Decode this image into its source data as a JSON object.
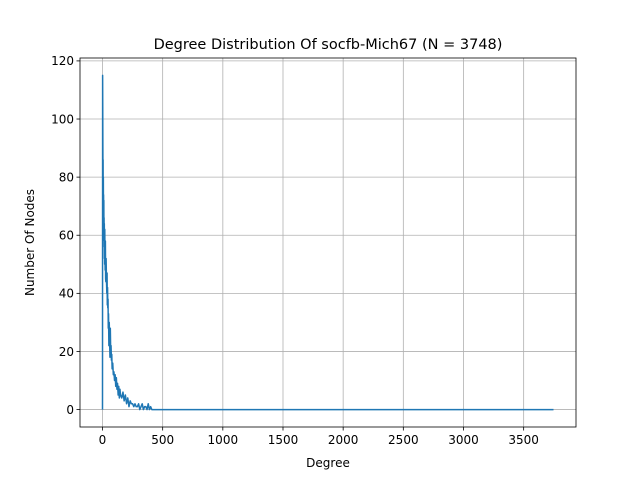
{
  "chart_data": {
    "type": "line",
    "title": "Degree Distribution Of socfb-Mich67 (N = 3748)",
    "xlabel": "Degree",
    "ylabel": "Number Of Nodes",
    "xlim": [
      -187,
      3935
    ],
    "ylim": [
      -6,
      121
    ],
    "xticks": [
      0,
      500,
      1000,
      1500,
      2000,
      2500,
      3000,
      3500
    ],
    "yticks": [
      0,
      20,
      40,
      60,
      80,
      100,
      120
    ],
    "grid": true,
    "legend": "none",
    "series": [
      {
        "color": "#1f77b4",
        "x": [
          0,
          1,
          2,
          3,
          4,
          5,
          6,
          7,
          8,
          9,
          10,
          11,
          12,
          13,
          14,
          15,
          16,
          17,
          18,
          19,
          20,
          22,
          24,
          26,
          28,
          30,
          32,
          34,
          36,
          38,
          40,
          42,
          44,
          46,
          48,
          50,
          53,
          56,
          59,
          62,
          65,
          68,
          71,
          74,
          77,
          80,
          85,
          90,
          95,
          100,
          105,
          110,
          115,
          120,
          125,
          130,
          135,
          140,
          145,
          150,
          160,
          170,
          180,
          190,
          200,
          210,
          220,
          230,
          240,
          250,
          260,
          270,
          280,
          290,
          300,
          310,
          320,
          330,
          340,
          350,
          360,
          370,
          380,
          390,
          400,
          410,
          420,
          500,
          1000,
          1500,
          2000,
          2500,
          3000,
          3500,
          3748
        ],
        "y": [
          0,
          115,
          104,
          91,
          78,
          86,
          70,
          80,
          68,
          74,
          63,
          72,
          58,
          66,
          56,
          64,
          52,
          60,
          50,
          62,
          55,
          48,
          58,
          45,
          44,
          52,
          47,
          43,
          40,
          47,
          36,
          42,
          35,
          38,
          28,
          33,
          22,
          30,
          24,
          18,
          28,
          20,
          22,
          17,
          19,
          14,
          16,
          12,
          13,
          10,
          12,
          8,
          11,
          7,
          9,
          5,
          8,
          4,
          7,
          5,
          4,
          6,
          3,
          5,
          2,
          4,
          1,
          3,
          2,
          2,
          1,
          2,
          1,
          1,
          2,
          0,
          1,
          2,
          0,
          1,
          1,
          0,
          2,
          0,
          1,
          0,
          0,
          0,
          0,
          0,
          0,
          0,
          0,
          0,
          0
        ]
      }
    ]
  }
}
